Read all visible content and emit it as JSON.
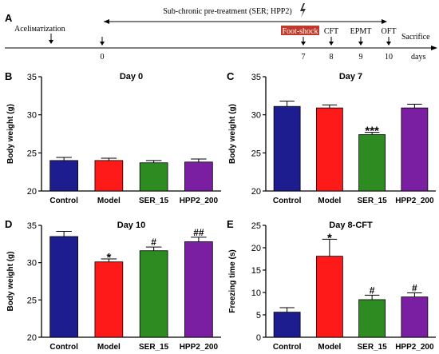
{
  "timeline": {
    "panel_letter": "A",
    "acclimatization_label": "Aceliматization",
    "pretreatment_label": "Sub-chronic pre-treatment (SER; HPP2)",
    "footshock_label": "Foot-shock",
    "sacrifice_label": "Sacrifice",
    "days_label": "days",
    "markers": [
      {
        "day": "0",
        "label": ""
      },
      {
        "day": "7",
        "label": ""
      },
      {
        "day": "8",
        "label": "CFT"
      },
      {
        "day": "9",
        "label": "EPMT"
      },
      {
        "day": "10",
        "label": "OFT"
      }
    ],
    "footshock_color": "#c0392b"
  },
  "chart_data": [
    {
      "panel_letter": "B",
      "type": "bar",
      "title": "Day 0",
      "ylabel": "Body weight (g)",
      "categories": [
        "Control",
        "Model",
        "SER_15",
        "HPP2_200"
      ],
      "values": [
        24.0,
        24.0,
        23.7,
        23.8
      ],
      "errors": [
        0.4,
        0.3,
        0.3,
        0.4
      ],
      "significance": [
        "",
        "",
        "",
        ""
      ],
      "ylim": [
        20,
        35
      ],
      "yticks": [
        "20",
        "25",
        "30",
        "35"
      ],
      "colors": [
        "#1d1d8f",
        "#ff1a1a",
        "#2e8b22",
        "#7b1fa2"
      ]
    },
    {
      "panel_letter": "C",
      "type": "bar",
      "title": "Day 7",
      "ylabel": "Body weight (g)",
      "categories": [
        "Control",
        "Model",
        "SER_15",
        "HPP2_200"
      ],
      "values": [
        31.1,
        30.9,
        27.4,
        30.9
      ],
      "errors": [
        0.7,
        0.4,
        0.3,
        0.5
      ],
      "significance": [
        "",
        "",
        "***",
        ""
      ],
      "ylim": [
        20,
        35
      ],
      "yticks": [
        "20",
        "25",
        "30",
        "35"
      ],
      "colors": [
        "#1d1d8f",
        "#ff1a1a",
        "#2e8b22",
        "#7b1fa2"
      ]
    },
    {
      "panel_letter": "D",
      "type": "bar",
      "title": "Day 10",
      "ylabel": "Body weight (g)",
      "categories": [
        "Control",
        "Model",
        "SER_15",
        "HPP2_200"
      ],
      "values": [
        33.5,
        30.1,
        31.6,
        32.8
      ],
      "errors": [
        0.7,
        0.4,
        0.5,
        0.6
      ],
      "significance": [
        "",
        "*",
        "#",
        "##"
      ],
      "ylim": [
        20,
        35
      ],
      "yticks": [
        "20",
        "25",
        "30",
        "35"
      ],
      "colors": [
        "#1d1d8f",
        "#ff1a1a",
        "#2e8b22",
        "#7b1fa2"
      ]
    },
    {
      "panel_letter": "E",
      "type": "bar",
      "title": "Day 8-CFT",
      "ylabel": "Freezing time (s)",
      "categories": [
        "Control",
        "Model",
        "SER_15",
        "HPP2_200"
      ],
      "values": [
        5.6,
        18.1,
        8.4,
        9.0
      ],
      "errors": [
        1.0,
        3.8,
        1.0,
        0.9
      ],
      "significance": [
        "",
        "*",
        "#",
        "#"
      ],
      "ylim": [
        0,
        25
      ],
      "yticks": [
        "0",
        "5",
        "10",
        "15",
        "20",
        "25"
      ],
      "colors": [
        "#1d1d8f",
        "#ff1a1a",
        "#2e8b22",
        "#7b1fa2"
      ]
    }
  ]
}
